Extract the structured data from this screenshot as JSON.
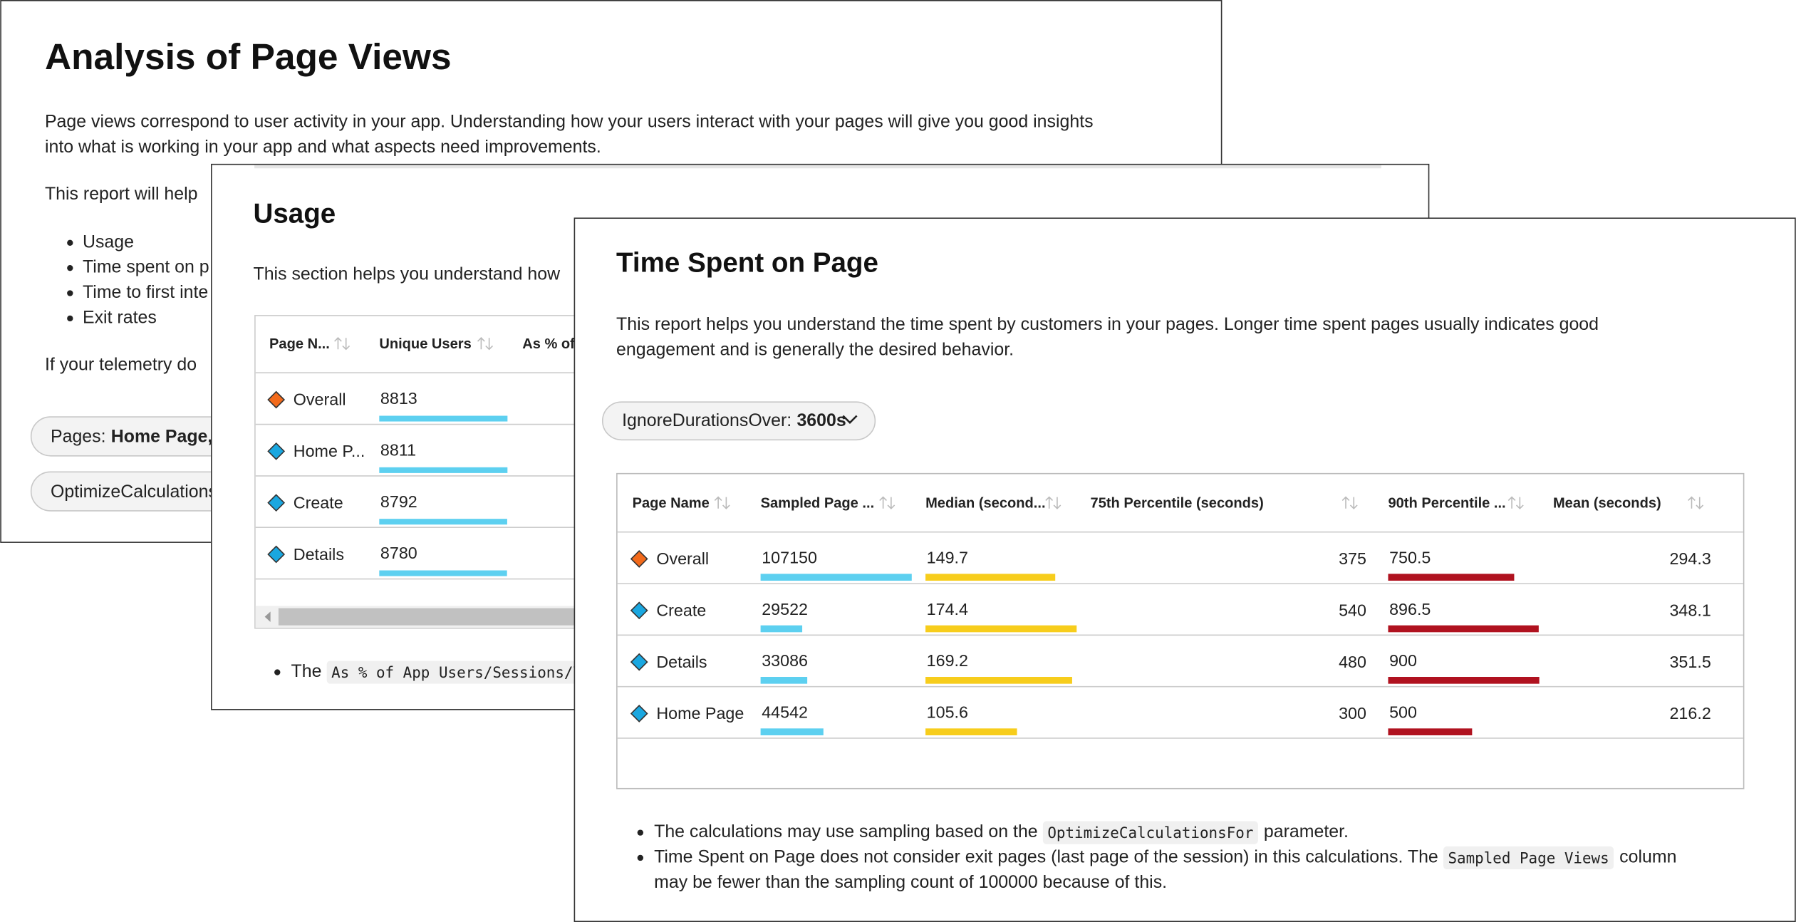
{
  "analysis": {
    "title": "Analysis of Page Views",
    "intro_lines": [
      "Page views correspond to user activity in your app. Understanding how your users interact with your pages will give you good insights",
      "into what is working in your app and what aspects need improvements."
    ],
    "help_text": "This report will help",
    "bullets": [
      "Usage",
      "Time spent on p",
      "Time to first inte",
      "Exit rates"
    ],
    "telemetry_text": "If your telemetry do",
    "pages_chip": {
      "label": "Pages:",
      "value": "Home Page, D"
    },
    "optimize_chip": "OptimizeCalculations"
  },
  "usage": {
    "title": "Usage",
    "intro": "This section helps you understand how",
    "columns": [
      {
        "label": "Page N..."
      },
      {
        "label": "Unique Users",
        "bar_color": "#5dd0f0"
      },
      {
        "label": "As % of"
      }
    ],
    "rows": [
      {
        "name": "Overall",
        "icon_color": "#f26a1b",
        "unique_users": 8813
      },
      {
        "name": "Home P...",
        "icon_color": "#1aa7e0",
        "unique_users": 8811
      },
      {
        "name": "Create",
        "icon_color": "#1aa7e0",
        "unique_users": 8792
      },
      {
        "name": "Details",
        "icon_color": "#1aa7e0",
        "unique_users": 8780
      }
    ],
    "note": {
      "prefix": "The",
      "code": "As % of App Users/Sessions/V"
    }
  },
  "time_spent": {
    "title": "Time Spent on Page",
    "intro_lines": [
      "This report helps you understand the time spent by customers in your pages. Longer time spent pages usually indicates good",
      "engagement and is generally the desired behavior."
    ],
    "chip": {
      "label": "IgnoreDurationsOver:",
      "value": "3600s"
    },
    "columns": [
      {
        "label": "Page Name"
      },
      {
        "label": "Sampled Page ...",
        "bar_color": "#5dd0f0"
      },
      {
        "label": "Median (second...",
        "bar_color": "#f7cd1c"
      },
      {
        "label": "75th Percentile (seconds)"
      },
      {
        "label": "90th Percentile ...",
        "bar_color": "#b0121f"
      },
      {
        "label": "Mean (seconds)"
      }
    ],
    "rows": [
      {
        "name": "Overall",
        "icon_color": "#f26a1b",
        "values": [
          107150,
          149.7,
          375,
          750.5,
          294.3
        ]
      },
      {
        "name": "Create",
        "icon_color": "#1aa7e0",
        "values": [
          29522,
          174.4,
          540,
          896.5,
          348.1
        ]
      },
      {
        "name": "Details",
        "icon_color": "#1aa7e0",
        "values": [
          33086,
          169.2,
          480,
          900,
          351.5
        ]
      },
      {
        "name": "Home Page",
        "icon_color": "#1aa7e0",
        "values": [
          44542,
          105.6,
          300,
          500,
          216.2
        ]
      }
    ],
    "notes": [
      {
        "text": "The calculations may use sampling based on the",
        "code": "OptimizeCalculationsFor",
        "suffix": "parameter."
      },
      {
        "text": "Time Spent on Page does not consider exit pages (last page of the session) in this calculations. The",
        "code": "Sampled Page Views",
        "suffix": "column",
        "continuation": "may be fewer than the sampling count of 100000 because of this."
      }
    ]
  }
}
